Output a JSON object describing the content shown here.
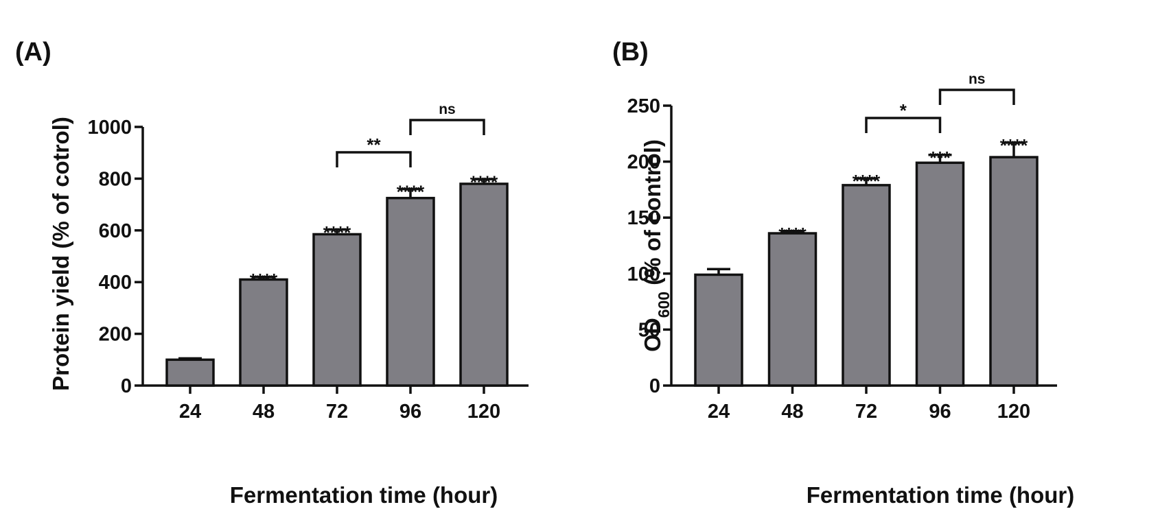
{
  "chart_data": [
    {
      "type": "bar",
      "panel_label": "(A)",
      "categories": [
        "24",
        "48",
        "72",
        "96",
        "120"
      ],
      "values": [
        100,
        410,
        585,
        725,
        780
      ],
      "errors": [
        5,
        10,
        18,
        35,
        18
      ],
      "significance": [
        "",
        "****",
        "****",
        "****",
        "****"
      ],
      "brackets": [
        {
          "from": 2,
          "to": 3,
          "label": "**"
        },
        {
          "from": 3,
          "to": 4,
          "label": "ns"
        }
      ],
      "xlabel": "Fermentation time (hour)",
      "ylabel": "Protein yield (% of cotrol)",
      "ylim": [
        0,
        1000
      ],
      "yticks": [
        "0",
        "200",
        "400",
        "600",
        "800",
        "1000"
      ],
      "grid": false,
      "bar_color": "#7f7e84"
    },
    {
      "type": "bar",
      "panel_label": "(B)",
      "categories": [
        "24",
        "48",
        "72",
        "96",
        "120"
      ],
      "values": [
        99,
        136,
        179,
        199,
        204
      ],
      "errors": [
        5,
        2,
        6,
        7,
        13
      ],
      "significance": [
        "",
        "****",
        "****",
        "***",
        "****"
      ],
      "brackets": [
        {
          "from": 2,
          "to": 3,
          "label": "*"
        },
        {
          "from": 3,
          "to": 4,
          "label": "ns"
        }
      ],
      "xlabel": "Fermentation time (hour)",
      "ylabel_main": "OD",
      "ylabel_sub": "600",
      "ylabel_rest": " (% of control)",
      "ylim": [
        0,
        250
      ],
      "yticks": [
        "0",
        "50",
        "100",
        "150",
        "200",
        "250"
      ],
      "grid": false,
      "bar_color": "#7f7e84"
    }
  ]
}
